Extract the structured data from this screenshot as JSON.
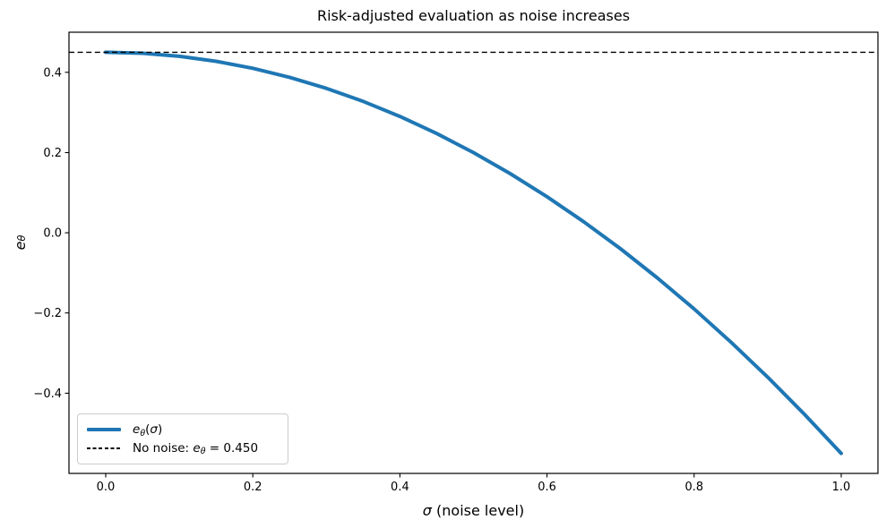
{
  "figure": {
    "title": "Risk-adjusted evaluation as noise increases"
  },
  "axes": {
    "xlabel": {
      "sym": "σ",
      "rest": " (noise level)"
    },
    "ylabel": {
      "var": "e",
      "sub": "θ"
    }
  },
  "legend": {
    "items": [
      {
        "color": "#1f77b4",
        "var": "e",
        "sub": "θ",
        "open": "(",
        "arg": "σ",
        "close": ")"
      },
      {
        "color": "#000000",
        "prefix": "No noise: ",
        "var": "e",
        "sub": "θ",
        "rest": " = 0.450"
      }
    ]
  },
  "chart_data": {
    "type": "line",
    "title": "Risk-adjusted evaluation as noise increases",
    "xlabel": "σ (noise level)",
    "ylabel": "e_θ",
    "xlim": [
      -0.05,
      1.05
    ],
    "ylim": [
      -0.6,
      0.5
    ],
    "grid": false,
    "legend_position": "lower left",
    "x_tick_values": [
      0.0,
      0.2,
      0.4,
      0.6,
      0.8,
      1.0
    ],
    "x_tick_labels": [
      "0.0",
      "0.2",
      "0.4",
      "0.6",
      "0.8",
      "1.0"
    ],
    "y_tick_values": [
      0.4,
      0.2,
      0.0,
      -0.2,
      -0.4
    ],
    "y_tick_labels": [
      "0.4",
      "0.2",
      "0.0",
      "−0.2",
      "−0.4"
    ],
    "series": [
      {
        "name": "e_θ(σ)",
        "color": "#1f77b4",
        "linewidth": 3,
        "x": [
          0.0,
          0.05,
          0.1,
          0.15,
          0.2,
          0.25,
          0.3,
          0.35,
          0.4,
          0.45,
          0.5,
          0.55,
          0.6,
          0.65,
          0.7,
          0.75,
          0.8,
          0.85,
          0.9,
          0.95,
          1.0
        ],
        "y": [
          0.45,
          0.4475,
          0.44,
          0.4275,
          0.41,
          0.3875,
          0.36,
          0.3275,
          0.29,
          0.2475,
          0.2,
          0.1475,
          0.09,
          0.0275,
          -0.04,
          -0.1125,
          -0.19,
          -0.2725,
          -0.36,
          -0.4525,
          -0.55
        ]
      }
    ],
    "reference_lines": [
      {
        "name": "No noise: e_θ = 0.450",
        "orientation": "horizontal",
        "value": 0.45,
        "style": "dashed",
        "color": "#000000"
      }
    ]
  }
}
